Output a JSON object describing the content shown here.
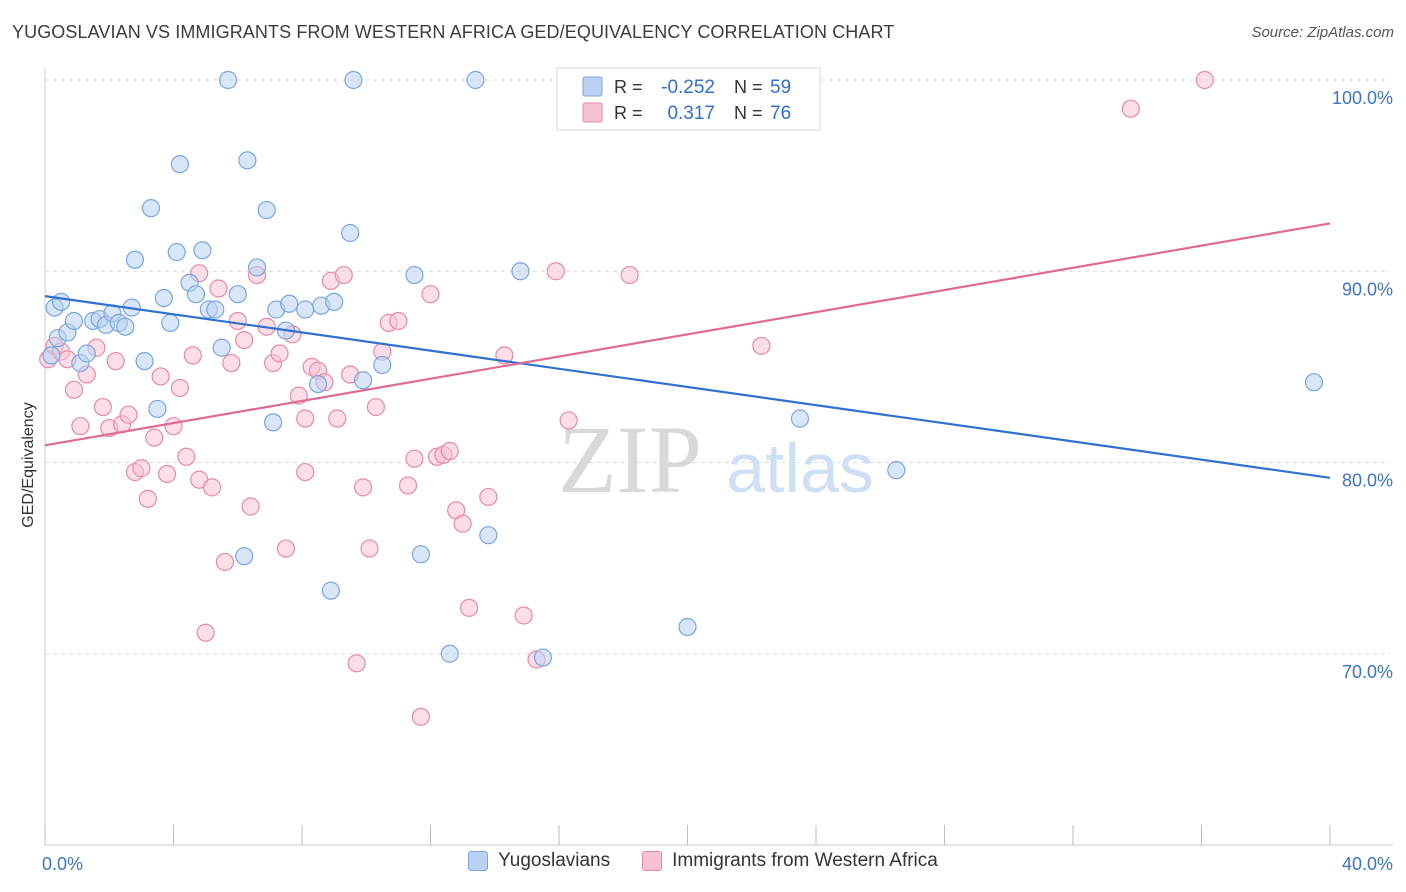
{
  "header": {
    "title": "YUGOSLAVIAN VS IMMIGRANTS FROM WESTERN AFRICA GED/EQUIVALENCY CORRELATION CHART",
    "source": "Source: ZipAtlas.com"
  },
  "stats": [
    {
      "r_label": "R =",
      "r_value": "-0.252",
      "n_label": "N =",
      "n_value": "59"
    },
    {
      "r_label": "R =",
      "r_value": "0.317",
      "n_label": "N =",
      "n_value": "76"
    }
  ],
  "watermark": {
    "zip": "ZIP",
    "atlas": "atlas"
  },
  "colors": {
    "blue_fill": "#b9d1f2",
    "blue_stroke": "#7aa6e0",
    "blue_line": "#2f70d0",
    "pink_fill": "#f7c3d3",
    "pink_stroke": "#e98aa8",
    "pink_line": "#e06a93",
    "axis_label": "#3b74c9"
  },
  "chart_data": {
    "type": "scatter",
    "ylabel": "GED/Equivalency",
    "xlim": [
      0,
      40
    ],
    "ylim": [
      60,
      100
    ],
    "x_tick_labels": [
      "0.0%",
      "40.0%"
    ],
    "y_ticks": [
      70,
      80,
      90,
      100
    ],
    "y_tick_labels": [
      "70.0%",
      "80.0%",
      "90.0%",
      "100.0%"
    ],
    "grid": true,
    "legend_position": "bottom-center",
    "series": [
      {
        "name": "Yugoslavians",
        "color": "#b9d1f2",
        "trend": {
          "x": [
            0,
            40
          ],
          "y": [
            88.7,
            79.2
          ]
        },
        "points": [
          [
            0.2,
            85.6
          ],
          [
            0.3,
            88.1
          ],
          [
            0.4,
            86.5
          ],
          [
            0.5,
            88.4
          ],
          [
            0.7,
            86.8
          ],
          [
            0.9,
            87.4
          ],
          [
            1.1,
            85.2
          ],
          [
            1.3,
            85.7
          ],
          [
            1.5,
            87.4
          ],
          [
            1.7,
            87.5
          ],
          [
            1.9,
            87.2
          ],
          [
            2.1,
            87.8
          ],
          [
            2.3,
            87.3
          ],
          [
            2.5,
            87.1
          ],
          [
            2.7,
            88.1
          ],
          [
            2.8,
            90.6
          ],
          [
            3.1,
            85.3
          ],
          [
            3.3,
            93.3
          ],
          [
            3.5,
            82.8
          ],
          [
            3.7,
            88.6
          ],
          [
            3.9,
            87.3
          ],
          [
            4.1,
            91.0
          ],
          [
            4.2,
            95.6
          ],
          [
            4.5,
            89.4
          ],
          [
            4.7,
            88.8
          ],
          [
            4.9,
            91.1
          ],
          [
            5.1,
            88.0
          ],
          [
            5.3,
            88.0
          ],
          [
            5.5,
            86.0
          ],
          [
            5.7,
            100.0
          ],
          [
            6.0,
            88.8
          ],
          [
            6.2,
            75.1
          ],
          [
            6.3,
            95.8
          ],
          [
            6.6,
            90.2
          ],
          [
            6.9,
            93.2
          ],
          [
            7.1,
            82.1
          ],
          [
            7.2,
            88.0
          ],
          [
            7.5,
            86.9
          ],
          [
            7.6,
            88.3
          ],
          [
            8.1,
            88.0
          ],
          [
            8.5,
            84.1
          ],
          [
            8.6,
            88.2
          ],
          [
            8.9,
            73.3
          ],
          [
            9.0,
            88.4
          ],
          [
            9.5,
            92.0
          ],
          [
            9.6,
            100.0
          ],
          [
            9.9,
            84.3
          ],
          [
            10.5,
            85.1
          ],
          [
            11.5,
            89.8
          ],
          [
            11.7,
            75.2
          ],
          [
            12.6,
            70.0
          ],
          [
            13.4,
            100.0
          ],
          [
            13.8,
            76.2
          ],
          [
            14.8,
            90.0
          ],
          [
            15.5,
            69.8
          ],
          [
            20.0,
            71.4
          ],
          [
            23.5,
            82.3
          ],
          [
            26.5,
            79.6
          ],
          [
            39.5,
            84.2
          ]
        ]
      },
      {
        "name": "Immigrants from Western Africa",
        "color": "#f7c3d3",
        "trend": {
          "x": [
            0,
            40
          ],
          "y": [
            80.9,
            92.5
          ]
        },
        "points": [
          [
            0.1,
            85.4
          ],
          [
            0.3,
            86.1
          ],
          [
            0.5,
            85.8
          ],
          [
            0.7,
            85.4
          ],
          [
            0.9,
            83.8
          ],
          [
            1.1,
            81.9
          ],
          [
            1.3,
            84.6
          ],
          [
            1.6,
            86.0
          ],
          [
            1.8,
            82.9
          ],
          [
            2.0,
            81.8
          ],
          [
            2.2,
            85.3
          ],
          [
            2.4,
            82.0
          ],
          [
            2.6,
            82.5
          ],
          [
            2.8,
            79.5
          ],
          [
            3.0,
            79.7
          ],
          [
            3.2,
            78.1
          ],
          [
            3.4,
            81.3
          ],
          [
            3.6,
            84.5
          ],
          [
            3.8,
            79.4
          ],
          [
            4.0,
            81.9
          ],
          [
            4.2,
            83.9
          ],
          [
            4.4,
            80.3
          ],
          [
            4.6,
            85.6
          ],
          [
            4.8,
            79.1
          ],
          [
            5.0,
            71.1
          ],
          [
            5.2,
            78.7
          ],
          [
            5.4,
            89.1
          ],
          [
            5.6,
            74.8
          ],
          [
            5.8,
            85.2
          ],
          [
            6.0,
            87.4
          ],
          [
            6.2,
            86.4
          ],
          [
            6.4,
            77.7
          ],
          [
            6.6,
            89.8
          ],
          [
            6.9,
            87.1
          ],
          [
            7.1,
            85.2
          ],
          [
            7.3,
            85.7
          ],
          [
            7.5,
            75.5
          ],
          [
            7.7,
            86.7
          ],
          [
            7.9,
            83.5
          ],
          [
            8.1,
            79.5
          ],
          [
            8.3,
            85.0
          ],
          [
            8.5,
            84.8
          ],
          [
            8.7,
            84.2
          ],
          [
            8.9,
            89.5
          ],
          [
            9.1,
            82.3
          ],
          [
            9.3,
            89.8
          ],
          [
            9.5,
            84.6
          ],
          [
            9.7,
            69.5
          ],
          [
            9.9,
            78.7
          ],
          [
            10.1,
            75.5
          ],
          [
            10.3,
            82.9
          ],
          [
            10.5,
            85.8
          ],
          [
            10.7,
            87.3
          ],
          [
            11.0,
            87.4
          ],
          [
            11.3,
            78.8
          ],
          [
            11.5,
            80.2
          ],
          [
            11.7,
            66.7
          ],
          [
            12.0,
            88.8
          ],
          [
            12.2,
            80.3
          ],
          [
            12.4,
            80.4
          ],
          [
            12.6,
            80.6
          ],
          [
            12.8,
            77.5
          ],
          [
            13.0,
            76.8
          ],
          [
            13.2,
            72.4
          ],
          [
            13.8,
            78.2
          ],
          [
            14.3,
            85.6
          ],
          [
            14.9,
            72.0
          ],
          [
            15.9,
            90.0
          ],
          [
            16.3,
            82.2
          ],
          [
            18.2,
            89.8
          ],
          [
            22.3,
            86.1
          ],
          [
            33.8,
            98.5
          ],
          [
            36.1,
            100.0
          ],
          [
            8.1,
            82.3
          ],
          [
            4.8,
            89.9
          ],
          [
            15.3,
            69.7
          ]
        ]
      }
    ]
  }
}
